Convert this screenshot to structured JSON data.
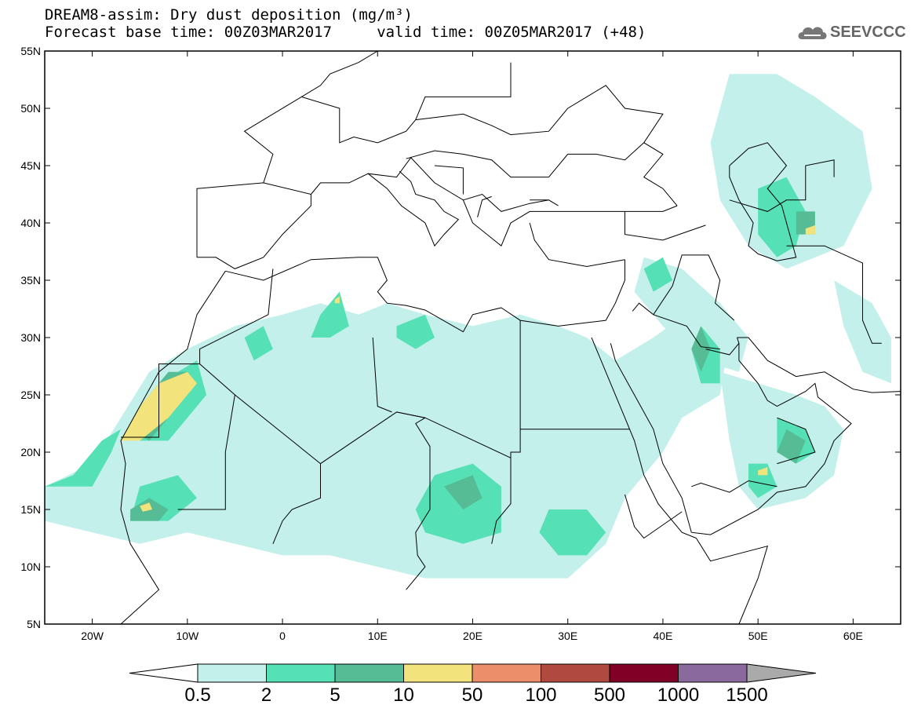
{
  "title": {
    "line1": "DREAM8-assim: Dry dust deposition (mg/m³)",
    "line2": "Forecast base time: 00Z03MAR2017     valid time: 00Z05MAR2017 (+48)"
  },
  "logo": {
    "text": "SEEVCCC",
    "icon": "cloud-icon"
  },
  "map": {
    "lon_range": [
      -25,
      65
    ],
    "lat_range": [
      5,
      55
    ],
    "lat_ticks": [
      "55N",
      "50N",
      "45N",
      "40N",
      "35N",
      "30N",
      "25N",
      "20N",
      "15N",
      "10N",
      "5N"
    ],
    "lat_values": [
      55,
      50,
      45,
      40,
      35,
      30,
      25,
      20,
      15,
      10,
      5
    ],
    "lon_ticks": [
      "20W",
      "10W",
      "0",
      "10E",
      "20E",
      "30E",
      "40E",
      "50E",
      "60E"
    ],
    "lon_values": [
      -20,
      -10,
      0,
      10,
      20,
      30,
      40,
      50,
      60
    ]
  },
  "colorbar": {
    "labels": [
      "0.5",
      "2",
      "5",
      "10",
      "50",
      "100",
      "500",
      "1000",
      "1500"
    ],
    "colors": [
      "#c4f0eb",
      "#56e0b5",
      "#55bc96",
      "#f2e37c",
      "#eb8f6a",
      "#b04a3f",
      "#800026",
      "#8a6a9e"
    ],
    "under_color": "#ffffff",
    "over_color": "#aaaaaa"
  },
  "palette": {
    "level1": "#c4f0eb",
    "level2": "#56e0b5",
    "level3": "#55bc96",
    "level4": "#f2e37c"
  }
}
